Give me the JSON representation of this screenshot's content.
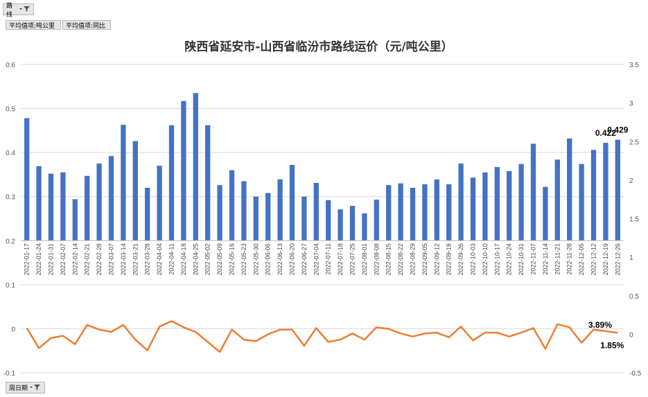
{
  "pivot": {
    "filter_field": "路线",
    "value_fields": [
      "平均值项:吨公里",
      "平均值项:同比"
    ],
    "axis_field": "周日期"
  },
  "colors": {
    "bar": "#4472C4",
    "line": "#ED7D31",
    "grid": "#D9D9D9"
  },
  "chart_data": {
    "type": "bar",
    "title": "陕西省延安市-山西省临汾市路线运价（元/吨公里）",
    "categories": [
      "2022-01-17",
      "2022-01-24",
      "2022-01-31",
      "2022-02-07",
      "2022-02-14",
      "2022-02-21",
      "2022-02-28",
      "2022-03-07",
      "2022-03-14",
      "2022-03-21",
      "2022-03-28",
      "2022-04-04",
      "2022-04-11",
      "2022-04-18",
      "2022-04-25",
      "2022-05-02",
      "2022-05-09",
      "2022-05-16",
      "2022-05-23",
      "2022-05-30",
      "2022-06-06",
      "2022-06-13",
      "2022-06-20",
      "2022-06-27",
      "2022-07-04",
      "2022-07-11",
      "2022-07-18",
      "2022-07-25",
      "2022-08-01",
      "2022-08-08",
      "2022-08-15",
      "2022-08-22",
      "2022-08-29",
      "2022-09-05",
      "2022-09-12",
      "2022-09-19",
      "2022-09-26",
      "2022-10-03",
      "2022-10-10",
      "2022-10-17",
      "2022-10-24",
      "2022-10-31",
      "2022-11-07",
      "2022-11-14",
      "2022-11-21",
      "2022-11-28",
      "2022-12-05",
      "2022-12-12",
      "2022-12-19",
      "2022-12-26"
    ],
    "series": [
      {
        "kind": "bar",
        "axis": "left",
        "values": [
          0.478,
          0.369,
          0.352,
          0.355,
          0.294,
          0.347,
          0.375,
          0.392,
          0.463,
          0.426,
          0.32,
          0.37,
          0.462,
          0.517,
          0.535,
          0.462,
          0.326,
          0.36,
          0.335,
          0.3,
          0.308,
          0.339,
          0.372,
          0.3,
          0.331,
          0.292,
          0.271,
          0.279,
          0.262,
          0.293,
          0.326,
          0.33,
          0.32,
          0.328,
          0.339,
          0.328,
          0.375,
          0.343,
          0.355,
          0.367,
          0.358,
          0.374,
          0.42,
          0.322,
          0.384,
          0.432,
          0.374,
          0.406,
          0.422,
          0.429
        ]
      },
      {
        "kind": "line",
        "axis": "right",
        "values": [
          0.08,
          -0.18,
          -0.05,
          -0.02,
          -0.13,
          0.12,
          0.06,
          0.03,
          0.12,
          -0.07,
          -0.21,
          0.1,
          0.17,
          0.09,
          0.03,
          -0.1,
          -0.23,
          0.06,
          -0.07,
          -0.09,
          0.0,
          0.06,
          0.06,
          -0.15,
          0.08,
          -0.1,
          -0.07,
          0.01,
          -0.07,
          0.09,
          0.07,
          0.01,
          -0.03,
          0.01,
          0.02,
          -0.04,
          0.1,
          -0.08,
          0.02,
          0.02,
          -0.03,
          0.02,
          0.08,
          -0.19,
          0.13,
          0.09,
          -0.11,
          0.06,
          0.0389,
          0.0185
        ]
      }
    ],
    "ylim_left": [
      -0.1,
      0.6
    ],
    "yticks_left": [
      "-0.1",
      "0",
      "0.1",
      "0.2",
      "0.3",
      "0.4",
      "0.5",
      "0.6"
    ],
    "ylim_right": [
      -0.5,
      3.5
    ],
    "yticks_right": [
      "-0.5",
      "0",
      "0.5",
      "1",
      "1.5",
      "2",
      "2.5",
      "3",
      "3.5"
    ],
    "bar_axis_break": [
      0.2,
      0.1
    ],
    "data_labels": [
      {
        "series": 0,
        "index": 48,
        "text": "0.422"
      },
      {
        "series": 0,
        "index": 49,
        "text": "0.429"
      },
      {
        "series": 1,
        "index": 48,
        "text": "3.89%"
      },
      {
        "series": 1,
        "index": 49,
        "text": "1.85%"
      }
    ],
    "grid": true,
    "legend": "none"
  }
}
